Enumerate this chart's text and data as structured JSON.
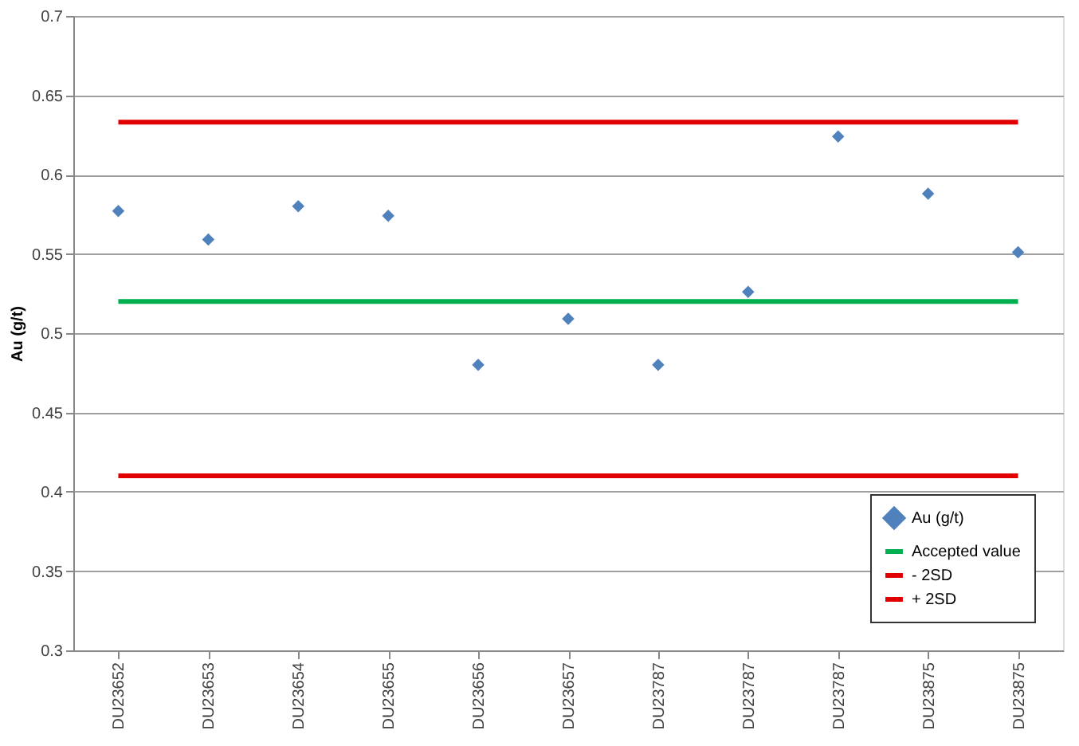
{
  "chart_data": {
    "type": "scatter",
    "ylabel": "Au (g/t)",
    "categories": [
      "DU23652",
      "DU23653",
      "DU23654",
      "DU23655",
      "DU23656",
      "DU23657",
      "DU23787",
      "DU23787",
      "DU23787",
      "DU23875",
      "DU23875"
    ],
    "series": [
      {
        "name": "Au (g/t)",
        "marker": "diamond",
        "color": "#4f81bd",
        "values": [
          0.577,
          0.559,
          0.58,
          0.574,
          0.48,
          0.509,
          0.48,
          0.526,
          0.624,
          0.588,
          0.551
        ]
      },
      {
        "name": "Accepted value",
        "type": "line",
        "color": "#00b050",
        "values": [
          0.52,
          0.52,
          0.52,
          0.52,
          0.52,
          0.52,
          0.52,
          0.52,
          0.52,
          0.52,
          0.52
        ]
      },
      {
        "name": "- 2SD",
        "type": "line",
        "color": "#e00000",
        "values": [
          0.41,
          0.41,
          0.41,
          0.41,
          0.41,
          0.41,
          0.41,
          0.41,
          0.41,
          0.41,
          0.41
        ]
      },
      {
        "name": "+ 2SD",
        "type": "line",
        "color": "#e00000",
        "values": [
          0.633,
          0.633,
          0.633,
          0.633,
          0.633,
          0.633,
          0.633,
          0.633,
          0.633,
          0.633,
          0.633
        ]
      }
    ],
    "ylim": [
      0.3,
      0.7
    ],
    "yticks": [
      0.3,
      0.35,
      0.4,
      0.45,
      0.5,
      0.55,
      0.6,
      0.65,
      0.7
    ],
    "grid": "y",
    "legend": "bottom right",
    "line_style": "solid"
  }
}
